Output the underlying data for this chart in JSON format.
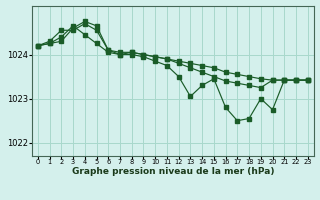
{
  "background_color": "#d4f0ec",
  "grid_color": "#a8d8cc",
  "line_color": "#1a5c28",
  "xlabel": "Graphe pression niveau de la mer (hPa)",
  "ylim": [
    1021.7,
    1025.1
  ],
  "yticks": [
    1022,
    1023,
    1024
  ],
  "xlim": [
    -0.5,
    23.5
  ],
  "xticks": [
    0,
    1,
    2,
    3,
    4,
    5,
    6,
    7,
    8,
    9,
    10,
    11,
    12,
    13,
    14,
    15,
    16,
    17,
    18,
    19,
    20,
    21,
    22,
    23
  ],
  "series1": [
    1024.2,
    1024.3,
    1024.55,
    1024.55,
    1024.7,
    1024.55,
    1024.1,
    1024.05,
    1024.05,
    1024.0,
    1023.95,
    1023.9,
    1023.85,
    1023.8,
    1023.75,
    1023.7,
    1023.6,
    1023.55,
    1023.5,
    1023.45,
    1023.42,
    1023.42,
    1023.42,
    1023.42
  ],
  "series2": [
    1024.2,
    1024.25,
    1024.3,
    1024.6,
    1024.75,
    1024.65,
    1024.1,
    1024.0,
    1024.0,
    1023.95,
    1023.85,
    1023.75,
    1023.5,
    1023.05,
    1023.3,
    1023.45,
    1022.8,
    1022.5,
    1022.55,
    1023.0,
    1022.75,
    1023.42,
    1023.42,
    1023.42
  ],
  "series3": [
    1024.2,
    1024.25,
    1024.4,
    1024.65,
    1024.45,
    1024.25,
    1024.05,
    1024.0,
    1024.05,
    1024.0,
    1023.95,
    1023.9,
    1023.8,
    1023.7,
    1023.6,
    1023.5,
    1023.4,
    1023.35,
    1023.3,
    1023.25,
    1023.42,
    1023.42,
    1023.42,
    1023.42
  ]
}
